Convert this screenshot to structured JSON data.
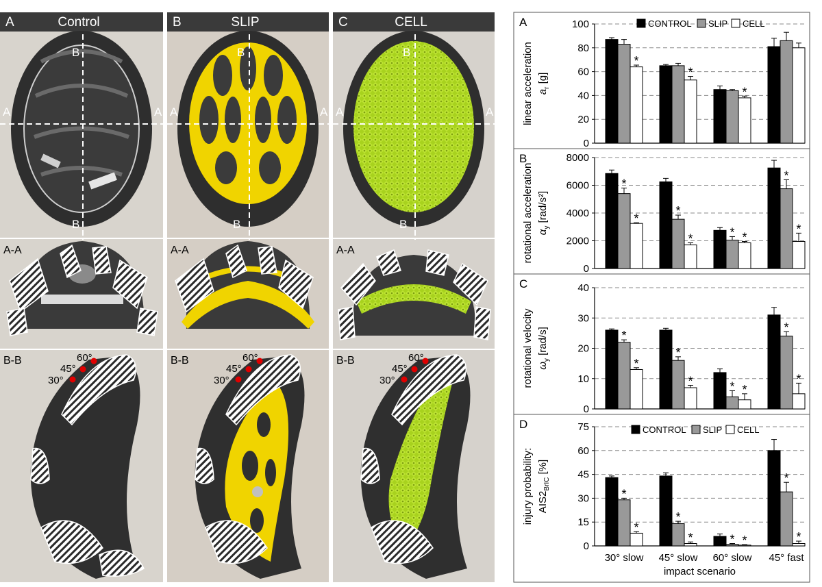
{
  "colors": {
    "control": "#000000",
    "slip": "#999999",
    "cell": "#ffffff",
    "panel_header": "#3a3a3a",
    "photo_bg": "#d8d4cd",
    "foam": "#2e2e2e",
    "slip_yellow": "#f0d400",
    "cell_green": "#a8d21e",
    "marker_red": "#e00000",
    "grid": "#8a8a8a"
  },
  "photo_panels": [
    {
      "letter": "A",
      "title": "Control"
    },
    {
      "letter": "B",
      "title": "SLIP"
    },
    {
      "letter": "C",
      "title": "CELL"
    }
  ],
  "section_labels": {
    "aa": "A-A",
    "bb": "B-B",
    "cut_a": "A",
    "cut_b": "B"
  },
  "angle_labels": [
    "30°",
    "45°",
    "60°"
  ],
  "icons": {
    "helmet_top": "helmet-top-view-photo",
    "helmet_front": "helmet-front-section-photo",
    "helmet_side": "helmet-side-section-photo"
  },
  "shared": {
    "categories": [
      "30° slow",
      "45° slow",
      "60° slow",
      "45° fast"
    ],
    "xlabel": "impact scenario",
    "legend": [
      "CONTROL",
      "SLIP",
      "CELL"
    ]
  },
  "chart_data": [
    {
      "type": "bar",
      "panel": "A",
      "ylabel_line1": "linear acceleration",
      "ylabel_line2": "a",
      "ylabel_sub": "r",
      "ylabel_unit": " [g]",
      "ylim": [
        0,
        100
      ],
      "yticks": [
        0,
        20,
        40,
        60,
        80,
        100
      ],
      "grid": true,
      "legend_placement": "top",
      "series": [
        {
          "name": "CONTROL",
          "values": [
            87,
            65,
            45,
            81
          ],
          "errors": [
            1.5,
            1,
            3,
            7
          ]
        },
        {
          "name": "SLIP",
          "values": [
            83,
            65,
            44,
            86
          ],
          "errors": [
            4,
            2,
            1,
            7
          ]
        },
        {
          "name": "CELL",
          "values": [
            64,
            53,
            38,
            80
          ],
          "errors": [
            1.5,
            3,
            1.5,
            4
          ]
        }
      ],
      "significance": [
        [
          null,
          null,
          "*"
        ],
        [
          null,
          null,
          "*"
        ],
        [
          null,
          null,
          "*"
        ],
        [
          null,
          null,
          null
        ]
      ]
    },
    {
      "type": "bar",
      "panel": "B",
      "ylabel_line1": "rotational acceleration",
      "ylabel_line2": "α",
      "ylabel_sub": "y",
      "ylabel_unit": " [rad/s²]",
      "ylim": [
        0,
        8000
      ],
      "yticks": [
        0,
        2000,
        4000,
        6000,
        8000
      ],
      "grid": true,
      "series": [
        {
          "name": "CONTROL",
          "values": [
            6850,
            6250,
            2750,
            7250
          ],
          "errors": [
            250,
            250,
            200,
            550
          ]
        },
        {
          "name": "SLIP",
          "values": [
            5400,
            3550,
            2050,
            5750
          ],
          "errors": [
            400,
            300,
            250,
            650
          ]
        },
        {
          "name": "CELL",
          "values": [
            3250,
            1700,
            1850,
            1950
          ],
          "errors": [
            50,
            150,
            100,
            600
          ]
        }
      ],
      "significance": [
        [
          null,
          "*",
          "*"
        ],
        [
          null,
          "*",
          "*"
        ],
        [
          null,
          "*",
          "*"
        ],
        [
          null,
          "*",
          "*"
        ]
      ]
    },
    {
      "type": "bar",
      "panel": "C",
      "ylabel_line1": "rotational velocity",
      "ylabel_line2": "ω",
      "ylabel_sub": "y",
      "ylabel_unit": " [rad/s]",
      "ylim": [
        0,
        40
      ],
      "yticks": [
        0,
        10,
        20,
        30,
        40
      ],
      "grid": true,
      "series": [
        {
          "name": "CONTROL",
          "values": [
            26,
            26,
            12,
            31
          ],
          "errors": [
            0.4,
            0.6,
            1.2,
            2.5
          ]
        },
        {
          "name": "SLIP",
          "values": [
            22,
            16,
            4,
            24
          ],
          "errors": [
            0.8,
            1.2,
            2,
            1.5
          ]
        },
        {
          "name": "CELL",
          "values": [
            13,
            7,
            3,
            5
          ],
          "errors": [
            0.6,
            0.8,
            2,
            3.5
          ]
        }
      ],
      "significance": [
        [
          null,
          "*",
          "*"
        ],
        [
          null,
          "*",
          "*"
        ],
        [
          null,
          "*",
          "*"
        ],
        [
          null,
          "*",
          "*"
        ]
      ]
    },
    {
      "type": "bar",
      "panel": "D",
      "ylabel_line1": "injury probability:",
      "ylabel_line2": "AIS2",
      "ylabel_sub": "BrIC",
      "ylabel_unit": " [%]",
      "ylim": [
        0,
        75
      ],
      "yticks": [
        0,
        15,
        30,
        45,
        60,
        75
      ],
      "grid": true,
      "legend_placement": "top",
      "series": [
        {
          "name": "CONTROL",
          "values": [
            43,
            44,
            6,
            60
          ],
          "errors": [
            1,
            2,
            1.5,
            7
          ]
        },
        {
          "name": "SLIP",
          "values": [
            29,
            14,
            1,
            34
          ],
          "errors": [
            1,
            1.5,
            0.5,
            6
          ]
        },
        {
          "name": "CELL",
          "values": [
            8,
            1.5,
            0.5,
            1.5
          ],
          "errors": [
            1,
            1,
            0.3,
            1.5
          ]
        }
      ],
      "significance": [
        [
          null,
          "*",
          "*"
        ],
        [
          null,
          "*",
          "*"
        ],
        [
          null,
          "*",
          "*"
        ],
        [
          null,
          "*",
          "*"
        ]
      ]
    }
  ]
}
